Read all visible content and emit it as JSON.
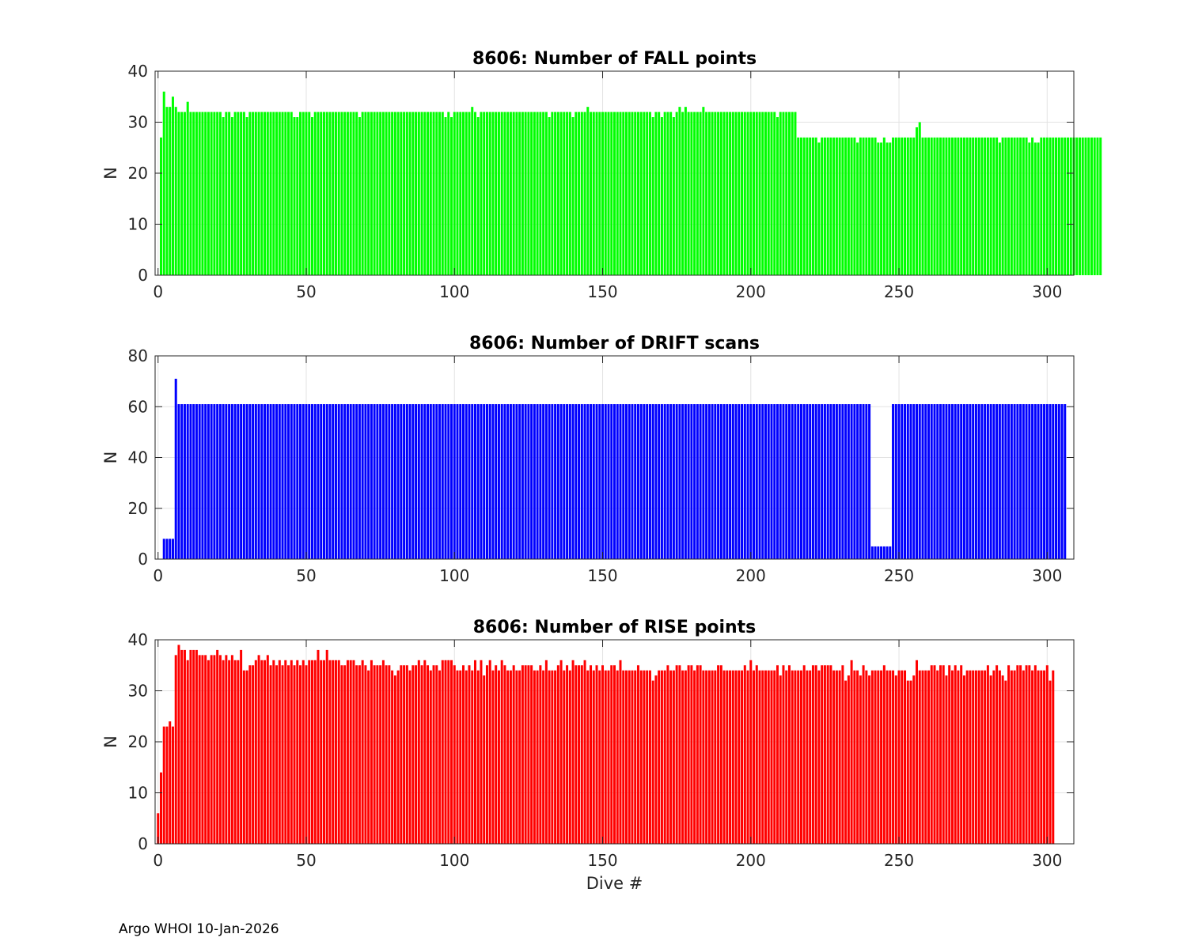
{
  "footer": "Argo WHOI 10-Jan-2026",
  "chart_data": [
    {
      "type": "bar",
      "title": "8606: Number of FALL points",
      "xlabel": "",
      "ylabel": "N",
      "xlim": [
        -1,
        309
      ],
      "ylim": [
        0,
        40
      ],
      "xticks": [
        0,
        50,
        100,
        150,
        200,
        250,
        300
      ],
      "yticks": [
        0,
        10,
        20,
        30,
        40
      ],
      "grid": true,
      "color": "#00ff00",
      "x_start": 1,
      "values": [
        27,
        36,
        33,
        33,
        35,
        33,
        32,
        32,
        32,
        34,
        32,
        32,
        32,
        32,
        32,
        32,
        32,
        32,
        32,
        32,
        32,
        31,
        32,
        32,
        31,
        32,
        32,
        32,
        32,
        31,
        32,
        32,
        32,
        32,
        32,
        32,
        32,
        32,
        32,
        32,
        32,
        32,
        32,
        32,
        32,
        31,
        31,
        32,
        32,
        32,
        32,
        31,
        32,
        32,
        32,
        32,
        32,
        32,
        32,
        32,
        32,
        32,
        32,
        32,
        32,
        32,
        32,
        31,
        32,
        32,
        32,
        32,
        32,
        32,
        32,
        32,
        32,
        32,
        32,
        32,
        32,
        32,
        32,
        32,
        32,
        32,
        32,
        32,
        32,
        32,
        32,
        32,
        32,
        32,
        32,
        32,
        31,
        32,
        31,
        32,
        32,
        32,
        32,
        32,
        32,
        33,
        32,
        31,
        32,
        32,
        32,
        32,
        32,
        32,
        32,
        32,
        32,
        32,
        32,
        32,
        32,
        32,
        32,
        32,
        32,
        32,
        32,
        32,
        32,
        32,
        32,
        31,
        32,
        32,
        32,
        32,
        32,
        32,
        32,
        31,
        32,
        32,
        32,
        32,
        33,
        32,
        32,
        32,
        32,
        32,
        32,
        32,
        32,
        32,
        32,
        32,
        32,
        32,
        32,
        32,
        32,
        32,
        32,
        32,
        32,
        32,
        31,
        32,
        32,
        31,
        32,
        32,
        32,
        31,
        32,
        33,
        32,
        33,
        32,
        32,
        32,
        32,
        32,
        33,
        32,
        32,
        32,
        32,
        32,
        32,
        32,
        32,
        32,
        32,
        32,
        32,
        32,
        32,
        32,
        32,
        32,
        32,
        32,
        32,
        32,
        32,
        32,
        32,
        31,
        32,
        32,
        32,
        32,
        32,
        32,
        27,
        27,
        27,
        27,
        27,
        27,
        27,
        26,
        27,
        27,
        27,
        27,
        27,
        27,
        27,
        27,
        27,
        27,
        27,
        27,
        26,
        27,
        27,
        27,
        27,
        27,
        27,
        26,
        26,
        27,
        26,
        26,
        27,
        27,
        27,
        27,
        27,
        27,
        27,
        27,
        29,
        30,
        27,
        27,
        27,
        27,
        27,
        27,
        27,
        27,
        27,
        27,
        27,
        27,
        27,
        27,
        27,
        27,
        27,
        27,
        27,
        27,
        27,
        27,
        27,
        27,
        27,
        27,
        26,
        27,
        27,
        27,
        27,
        27,
        27,
        27,
        27,
        27,
        26,
        27,
        26,
        26,
        27,
        27,
        27,
        27,
        27,
        27,
        27,
        27,
        27,
        27,
        27,
        27,
        27,
        27,
        27,
        27,
        27,
        27,
        27,
        27,
        27
      ]
    },
    {
      "type": "bar",
      "title": "8606: Number of DRIFT scans",
      "xlabel": "",
      "ylabel": "N",
      "xlim": [
        -1,
        309
      ],
      "ylim": [
        0,
        80
      ],
      "xticks": [
        0,
        50,
        100,
        150,
        200,
        250,
        300
      ],
      "yticks": [
        0,
        20,
        40,
        60,
        80
      ],
      "grid": true,
      "color": "#0000ff",
      "x_start": 1,
      "values": [
        0,
        8,
        8,
        8,
        8,
        71,
        61,
        61,
        61,
        61,
        61,
        61,
        61,
        61,
        61,
        61,
        61,
        61,
        61,
        61,
        61,
        61,
        61,
        61,
        61,
        61,
        61,
        61,
        61,
        61,
        61,
        61,
        61,
        61,
        61,
        61,
        61,
        61,
        61,
        61,
        61,
        61,
        61,
        61,
        61,
        61,
        61,
        61,
        61,
        61,
        61,
        61,
        61,
        61,
        61,
        61,
        61,
        61,
        61,
        61,
        61,
        61,
        61,
        61,
        61,
        61,
        61,
        61,
        61,
        61,
        61,
        61,
        61,
        61,
        61,
        61,
        61,
        61,
        61,
        61,
        61,
        61,
        61,
        61,
        61,
        61,
        61,
        61,
        61,
        61,
        61,
        61,
        61,
        61,
        61,
        61,
        61,
        61,
        61,
        61,
        61,
        61,
        61,
        61,
        61,
        61,
        61,
        61,
        61,
        61,
        61,
        61,
        61,
        61,
        61,
        61,
        61,
        61,
        61,
        61,
        61,
        61,
        61,
        61,
        61,
        61,
        61,
        61,
        61,
        61,
        61,
        61,
        61,
        61,
        61,
        61,
        61,
        61,
        61,
        61,
        61,
        61,
        61,
        61,
        61,
        61,
        61,
        61,
        61,
        61,
        61,
        61,
        61,
        61,
        61,
        61,
        61,
        61,
        61,
        61,
        61,
        61,
        61,
        61,
        61,
        61,
        61,
        61,
        61,
        61,
        61,
        61,
        61,
        61,
        61,
        61,
        61,
        61,
        61,
        61,
        61,
        61,
        61,
        61,
        61,
        61,
        61,
        61,
        61,
        61,
        61,
        61,
        61,
        61,
        61,
        61,
        61,
        61,
        61,
        61,
        61,
        61,
        61,
        61,
        61,
        61,
        61,
        61,
        61,
        61,
        61,
        61,
        61,
        61,
        61,
        61,
        61,
        61,
        61,
        61,
        61,
        61,
        61,
        61,
        61,
        61,
        61,
        61,
        61,
        61,
        61,
        61,
        61,
        61,
        61,
        61,
        61,
        61,
        61,
        61,
        5,
        5,
        5,
        5,
        5,
        5,
        5,
        61,
        61,
        61,
        61,
        61,
        61,
        61,
        61,
        61,
        61,
        61,
        61,
        61,
        61,
        61,
        61,
        61,
        61,
        61,
        61,
        61,
        61,
        61,
        61,
        61,
        61,
        61,
        61,
        61,
        61,
        61,
        61,
        61,
        61,
        61,
        61,
        61,
        61,
        61,
        61,
        61,
        61,
        61,
        61,
        61,
        61,
        61,
        61,
        61,
        61,
        61,
        61,
        61,
        61,
        61,
        61,
        61,
        61,
        61
      ]
    },
    {
      "type": "bar",
      "title": "8606: Number of RISE points",
      "xlabel": "Dive #",
      "ylabel": "N",
      "xlim": [
        -1,
        309
      ],
      "ylim": [
        0,
        40
      ],
      "xticks": [
        0,
        50,
        100,
        150,
        200,
        250,
        300
      ],
      "yticks": [
        0,
        10,
        20,
        30,
        40
      ],
      "grid": true,
      "color": "#ff0000",
      "x_start": 0,
      "values": [
        6,
        14,
        23,
        23,
        24,
        23,
        37,
        39,
        38,
        38,
        36,
        38,
        38,
        38,
        37,
        37,
        37,
        36,
        37,
        37,
        38,
        37,
        36,
        37,
        36,
        37,
        36,
        36,
        38,
        34,
        34,
        35,
        35,
        36,
        37,
        36,
        36,
        37,
        35,
        36,
        35,
        36,
        35,
        36,
        35,
        36,
        35,
        36,
        35,
        36,
        35,
        36,
        36,
        36,
        38,
        36,
        36,
        38,
        36,
        36,
        36,
        36,
        35,
        35,
        36,
        36,
        36,
        35,
        35,
        36,
        35,
        34,
        36,
        35,
        35,
        35,
        36,
        35,
        35,
        34,
        33,
        34,
        35,
        35,
        35,
        34,
        35,
        35,
        36,
        35,
        36,
        35,
        34,
        35,
        35,
        34,
        36,
        36,
        36,
        36,
        35,
        34,
        34,
        35,
        34,
        35,
        34,
        36,
        34,
        36,
        33,
        35,
        36,
        34,
        35,
        34,
        36,
        35,
        34,
        34,
        35,
        34,
        34,
        35,
        35,
        35,
        35,
        34,
        34,
        35,
        34,
        36,
        34,
        34,
        34,
        35,
        36,
        34,
        35,
        34,
        36,
        35,
        35,
        35,
        36,
        34,
        35,
        34,
        35,
        34,
        35,
        34,
        34,
        35,
        35,
        34,
        36,
        34,
        34,
        34,
        34,
        34,
        35,
        34,
        34,
        34,
        34,
        32,
        33,
        34,
        34,
        34,
        35,
        34,
        34,
        35,
        35,
        34,
        34,
        35,
        35,
        34,
        35,
        35,
        34,
        34,
        34,
        34,
        34,
        35,
        35,
        34,
        34,
        34,
        34,
        34,
        34,
        34,
        35,
        34,
        36,
        34,
        35,
        34,
        34,
        34,
        34,
        34,
        34,
        35,
        33,
        35,
        34,
        35,
        34,
        34,
        34,
        34,
        35,
        34,
        34,
        35,
        35,
        34,
        35,
        35,
        35,
        35,
        34,
        34,
        34,
        35,
        32,
        33,
        36,
        34,
        34,
        33,
        35,
        34,
        33,
        34,
        34,
        34,
        34,
        35,
        34,
        34,
        34,
        33,
        34,
        34,
        34,
        32,
        32,
        33,
        36,
        34,
        34,
        34,
        34,
        35,
        35,
        34,
        35,
        35,
        33,
        35,
        34,
        35,
        34,
        35,
        33,
        34,
        34,
        34,
        34,
        34,
        34,
        34,
        35,
        33,
        34,
        35,
        34,
        33,
        32,
        35,
        34,
        34,
        35,
        35,
        34,
        35,
        35,
        34,
        35,
        34,
        34,
        34,
        35,
        32,
        34
      ]
    }
  ]
}
